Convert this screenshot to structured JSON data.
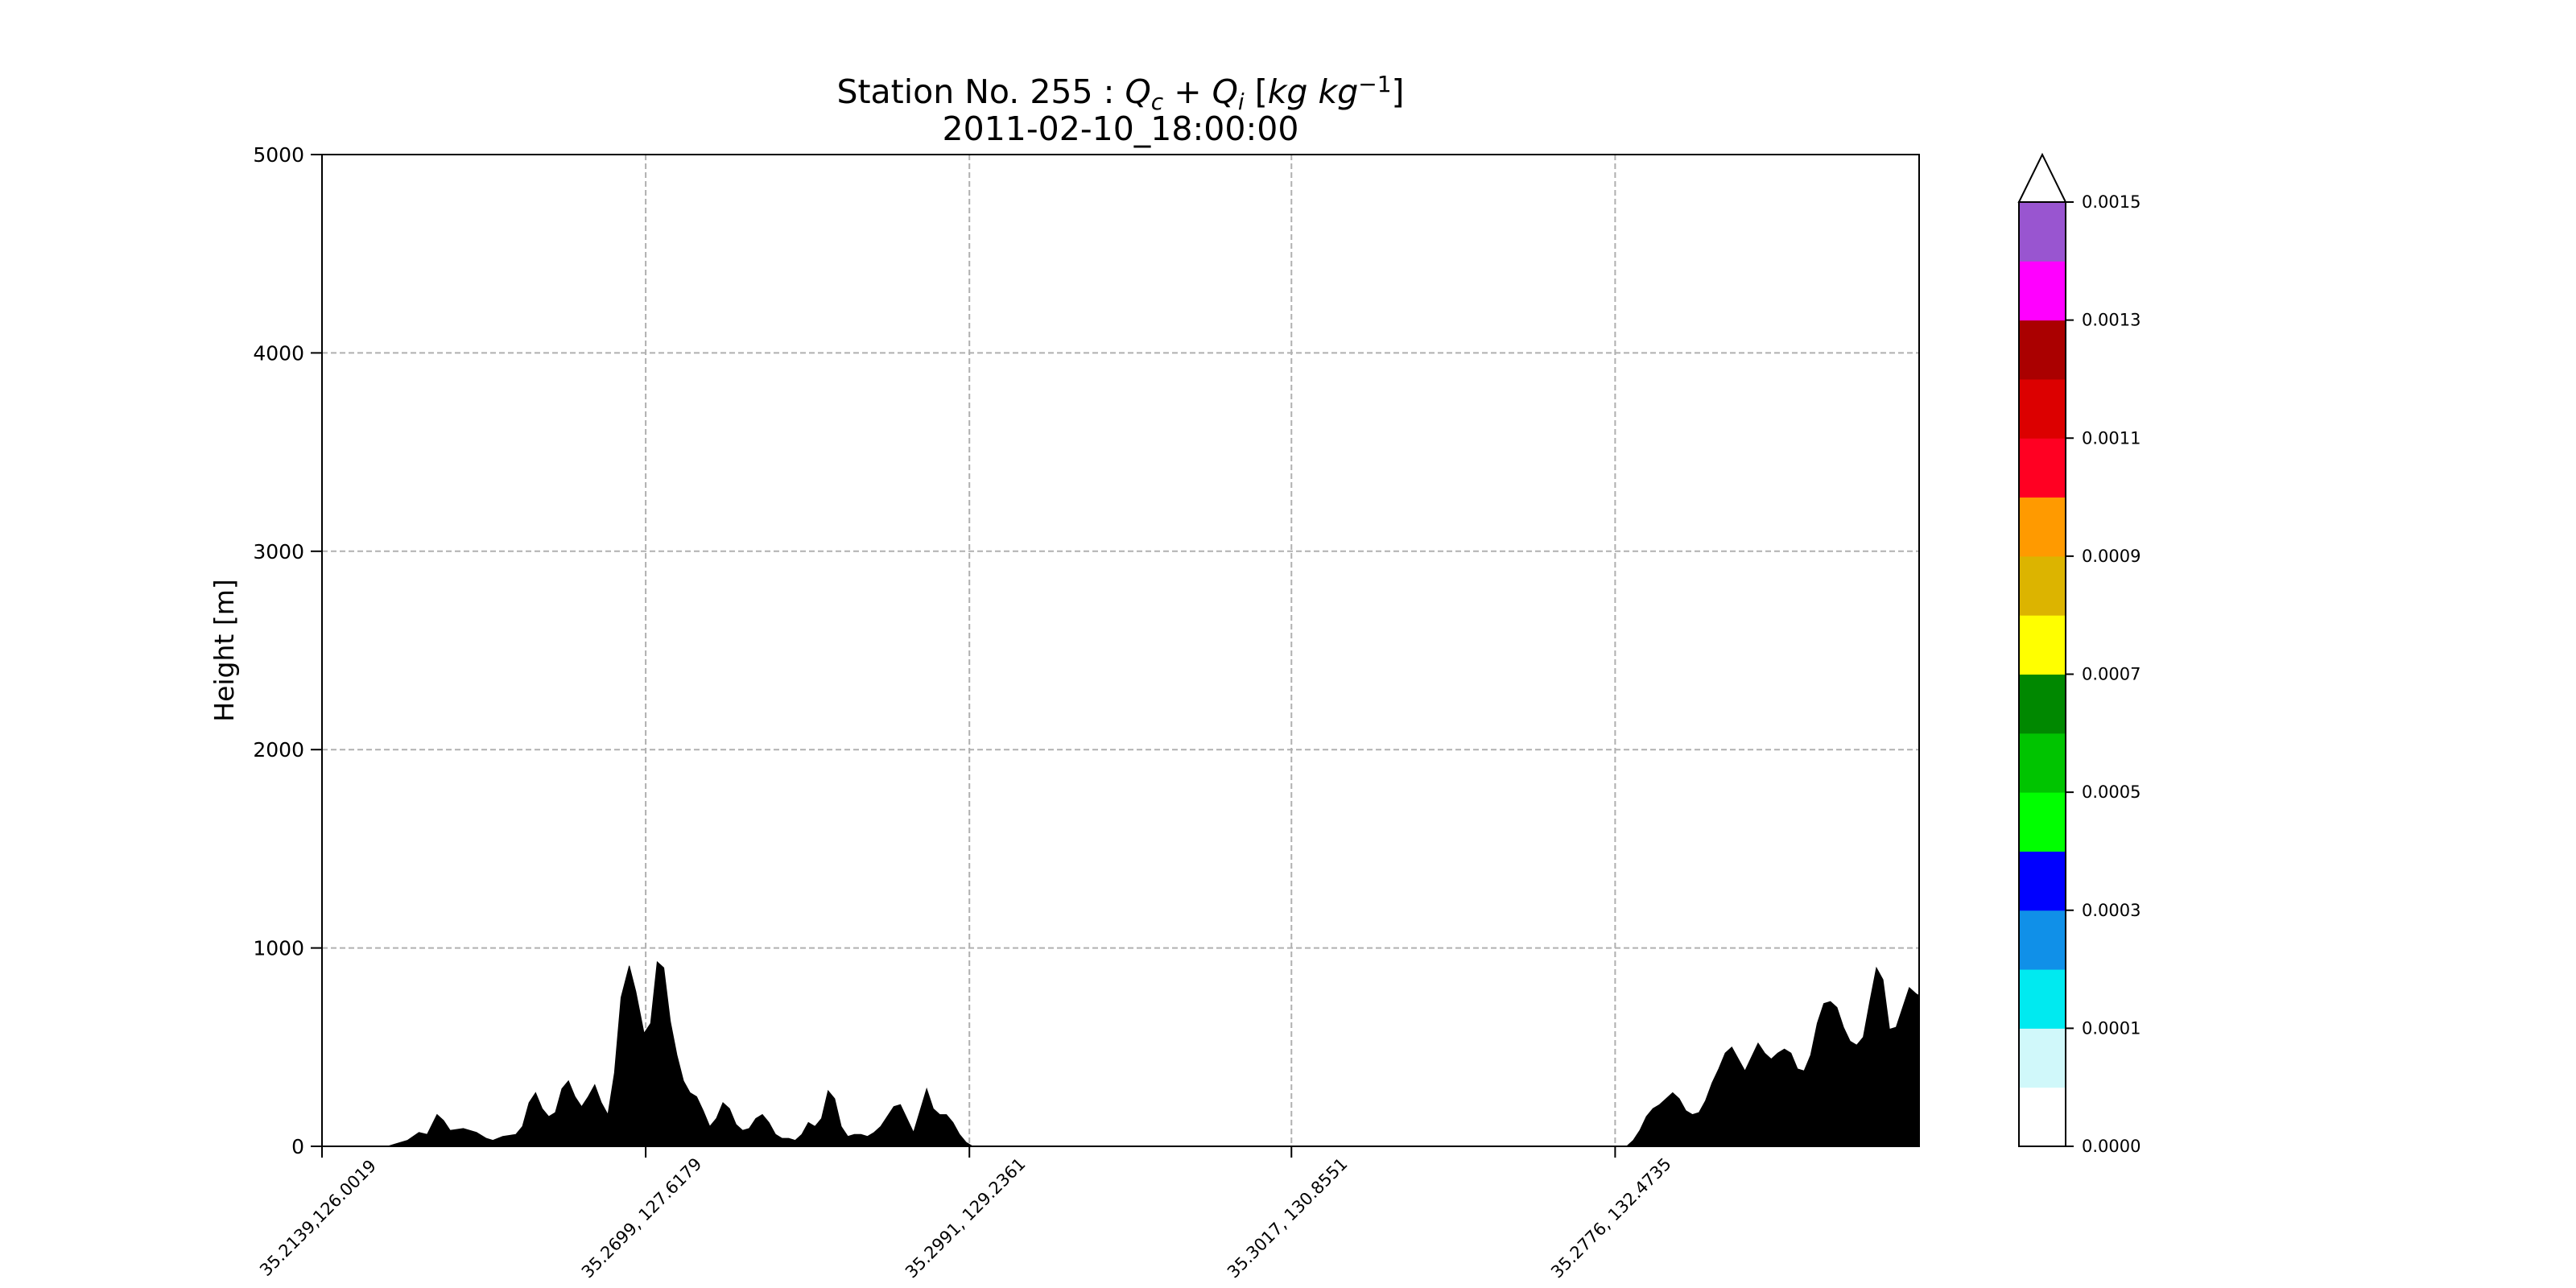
{
  "chart_data": {
    "type": "area",
    "title": [
      "Station No. 255 : ",
      "Q",
      "c",
      " + ",
      "Q",
      "i",
      " [",
      "kg kg",
      "−1",
      "]"
    ],
    "subtitle": "2011-02-10_18:00:00",
    "y_label": "Height [m]",
    "color": "#000000",
    "grid": true,
    "xlim": [
      0,
      972
    ],
    "xticks": [
      {
        "value": 0,
        "label": "35.2139,126.0019"
      },
      {
        "value": 197,
        "label": "35.2699, 127.6179"
      },
      {
        "value": 394,
        "label": "35.2991, 129.2361"
      },
      {
        "value": 590,
        "label": "35.3017, 130.8551"
      },
      {
        "value": 787,
        "label": "35.2776, 132.4735"
      }
    ],
    "ylim": [
      0,
      5000
    ],
    "yticks": [
      0,
      1000,
      2000,
      3000,
      4000,
      5000
    ],
    "x": [
      0,
      40,
      44,
      52,
      59,
      64,
      70,
      74,
      78,
      86,
      94,
      100,
      104,
      110,
      118,
      122,
      126,
      130,
      134,
      138,
      142,
      146,
      150,
      154,
      158,
      162,
      166,
      170,
      174,
      178,
      182,
      187,
      191,
      196,
      200,
      204,
      208,
      212,
      216,
      220,
      224,
      228,
      232,
      236,
      240,
      244,
      248,
      252,
      256,
      260,
      264,
      268,
      272,
      276,
      280,
      284,
      288,
      292,
      296,
      300,
      304,
      308,
      312,
      316,
      320,
      324,
      328,
      332,
      336,
      340,
      344,
      348,
      352,
      356,
      360,
      364,
      368,
      372,
      376,
      380,
      384,
      388,
      392,
      396,
      794,
      798,
      802,
      806,
      810,
      814,
      818,
      822,
      826,
      830,
      834,
      838,
      842,
      846,
      850,
      854,
      858,
      862,
      866,
      870,
      874,
      878,
      882,
      886,
      890,
      894,
      898,
      902,
      906,
      910,
      914,
      918,
      922,
      926,
      930,
      934,
      938,
      942,
      946,
      950,
      954,
      958,
      962,
      966,
      970,
      972
    ],
    "values": [
      0,
      0,
      10,
      30,
      70,
      60,
      160,
      130,
      80,
      90,
      70,
      40,
      30,
      50,
      60,
      100,
      220,
      270,
      190,
      150,
      170,
      290,
      330,
      250,
      200,
      250,
      310,
      220,
      160,
      370,
      750,
      910,
      780,
      570,
      620,
      930,
      900,
      630,
      460,
      330,
      270,
      250,
      180,
      100,
      140,
      220,
      190,
      110,
      80,
      90,
      140,
      160,
      120,
      60,
      40,
      40,
      30,
      60,
      120,
      100,
      140,
      280,
      240,
      100,
      50,
      60,
      60,
      50,
      70,
      100,
      150,
      200,
      210,
      140,
      70,
      180,
      290,
      190,
      160,
      160,
      120,
      60,
      20,
      0,
      0,
      30,
      80,
      150,
      190,
      210,
      240,
      270,
      240,
      180,
      160,
      170,
      230,
      320,
      390,
      470,
      500,
      440,
      380,
      450,
      520,
      470,
      440,
      470,
      490,
      470,
      390,
      380,
      460,
      620,
      720,
      730,
      700,
      600,
      530,
      510,
      550,
      730,
      900,
      840,
      590,
      600,
      700,
      800,
      770,
      760
    ],
    "colorbar": {
      "colors": [
        "#ffffff",
        "#d0f8fa",
        "#00eaf0",
        "#1090e8",
        "#0000ff",
        "#00ff00",
        "#00c400",
        "#008800",
        "#ffff00",
        "#dcb400",
        "#ff9a00",
        "#ff0022",
        "#dc0000",
        "#aa0000",
        "#ff00ff",
        "#9955d0"
      ],
      "over_color": "#ffffff",
      "ticks": [
        {
          "value": 0,
          "label": "0.0000"
        },
        {
          "value": 0.0001,
          "label": "0.0001"
        },
        {
          "value": 0.0003,
          "label": "0.0003"
        },
        {
          "value": 0.0005,
          "label": "0.0005"
        },
        {
          "value": 0.0007,
          "label": "0.0007"
        },
        {
          "value": 0.0009,
          "label": "0.0009"
        },
        {
          "value": 0.0011,
          "label": "0.0011"
        },
        {
          "value": 0.0013,
          "label": "0.0013"
        },
        {
          "value": 0.0015,
          "label": "0.0015"
        }
      ]
    }
  }
}
